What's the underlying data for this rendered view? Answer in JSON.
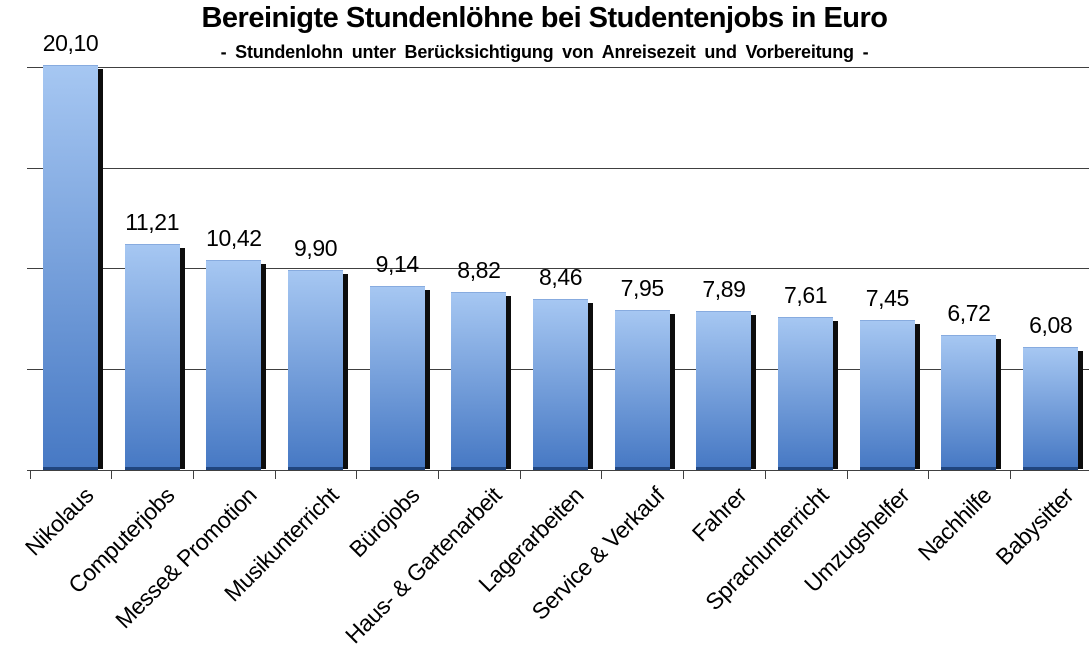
{
  "title": "Bereinigte Stundenlöhne bei Studentenjobs in Euro",
  "subtitle": "- Stundenlohn unter Berücksichtigung von Anreisezeit und Vorbereitung -",
  "chart_data": {
    "type": "bar",
    "title": "Bereinigte Stundenlöhne bei Studentenjobs in Euro",
    "subtitle": "- Stundenlohn unter Berücksichtigung von Anreisezeit und Vorbereitung -",
    "categories": [
      "Nikolaus",
      "Computerjobs",
      "Messe& Promotion",
      "Musikunterricht",
      "Bürojobs",
      "Haus- & Gartenarbeit",
      "Lagerarbeiten",
      "Service & Verkauf",
      "Fahrer",
      "Sprachunterricht",
      "Umzugshelfer",
      "Nachhilfe",
      "Babysitter"
    ],
    "values": [
      20.1,
      11.21,
      10.42,
      9.9,
      9.14,
      8.82,
      8.46,
      7.95,
      7.89,
      7.61,
      7.45,
      6.72,
      6.08
    ],
    "value_labels": [
      "20,10",
      "11,21",
      "10,42",
      "9,90",
      "9,14",
      "8,82",
      "8,46",
      "7,95",
      "7,89",
      "7,61",
      "7,45",
      "6,72",
      "6,08"
    ],
    "xlabel": "",
    "ylabel": "",
    "ylim": [
      0,
      20
    ],
    "gridline_values": [
      5,
      10,
      15,
      20
    ],
    "grid": "horizontal",
    "legend": "none",
    "colors": {
      "bar_gradient_top": "#a6c7f2",
      "bar_gradient_bottom": "#4779c4",
      "bar_top_edge": "#87abdf",
      "bar_bottom_edge": "#20457e",
      "bar_shadow": "#0d0d0d",
      "gridline": "#404040",
      "axis": "#404040",
      "text": "#000000"
    }
  }
}
